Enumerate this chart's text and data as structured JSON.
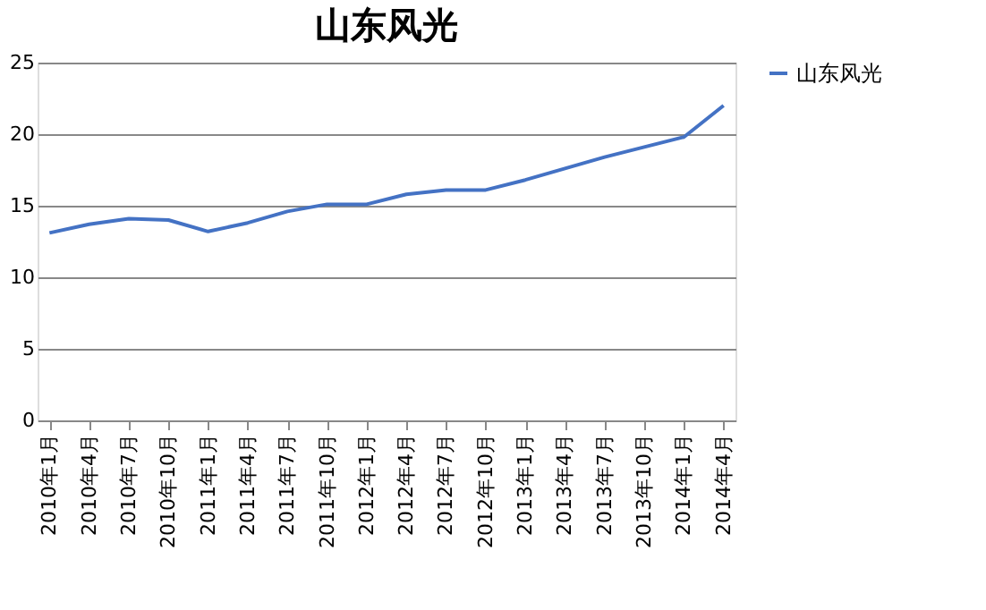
{
  "chart_data": {
    "type": "line",
    "title": "山东风光",
    "categories": [
      "2010年1月",
      "2010年4月",
      "2010年7月",
      "2010年10月",
      "2011年1月",
      "2011年4月",
      "2011年7月",
      "2011年10月",
      "2012年1月",
      "2012年4月",
      "2012年7月",
      "2012年10月",
      "2013年1月",
      "2013年4月",
      "2013年7月",
      "2013年10月",
      "2014年1月",
      "2014年4月"
    ],
    "series": [
      {
        "name": "山东风光",
        "color": "#4472c4",
        "values": [
          13.1,
          13.7,
          14.1,
          14.0,
          13.2,
          13.8,
          14.6,
          15.1,
          15.1,
          15.8,
          16.1,
          16.1,
          16.8,
          17.6,
          18.4,
          19.1,
          19.8,
          22.0
        ]
      }
    ],
    "ylim": [
      0,
      25
    ],
    "yticks": [
      0,
      5,
      10,
      15,
      20,
      25
    ],
    "grid": "y",
    "legend": "right",
    "marker": "none",
    "line_style": "solid"
  }
}
